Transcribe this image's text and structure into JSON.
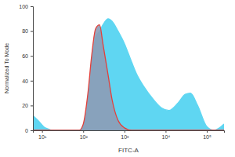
{
  "chart_data": {
    "type": "area",
    "log": "x",
    "x_label": "FITC-A",
    "y_label": "Normalized To Mode",
    "x": [
      6,
      8,
      12,
      20,
      50,
      80,
      100,
      130,
      160,
      200,
      250,
      300,
      400,
      500,
      700,
      1000,
      1500,
      2000,
      3000,
      5000,
      8000,
      12000,
      20000,
      30000,
      40000,
      60000,
      100000,
      150000,
      262144
    ],
    "series": [
      {
        "color": "#5fd6f2",
        "values": [
          12,
          8,
          2,
          0,
          0,
          0,
          4,
          25,
          55,
          75,
          80,
          85,
          90,
          88,
          80,
          70,
          55,
          45,
          35,
          25,
          18,
          16,
          22,
          29,
          30,
          20,
          3,
          0,
          5
        ]
      },
      {
        "color": "#e3403a",
        "values": [
          0,
          0,
          0,
          0,
          0,
          0,
          5,
          30,
          60,
          82,
          85,
          70,
          45,
          25,
          8,
          2,
          0,
          0,
          0,
          0,
          0,
          0,
          0,
          0,
          0,
          0,
          0,
          0,
          0
        ]
      }
    ],
    "xlim": [
      6,
      262144
    ],
    "xticks": [
      {
        "value": 10,
        "label": "10¹"
      },
      {
        "value": 100,
        "label": "10²"
      },
      {
        "value": 1000,
        "label": "10³"
      },
      {
        "value": 10000,
        "label": "10⁴"
      },
      {
        "value": 100000,
        "label": "10⁵"
      }
    ],
    "ylim": [
      0,
      100
    ],
    "yticks": [
      0,
      20,
      40,
      60,
      80,
      100
    ],
    "grid": false
  }
}
